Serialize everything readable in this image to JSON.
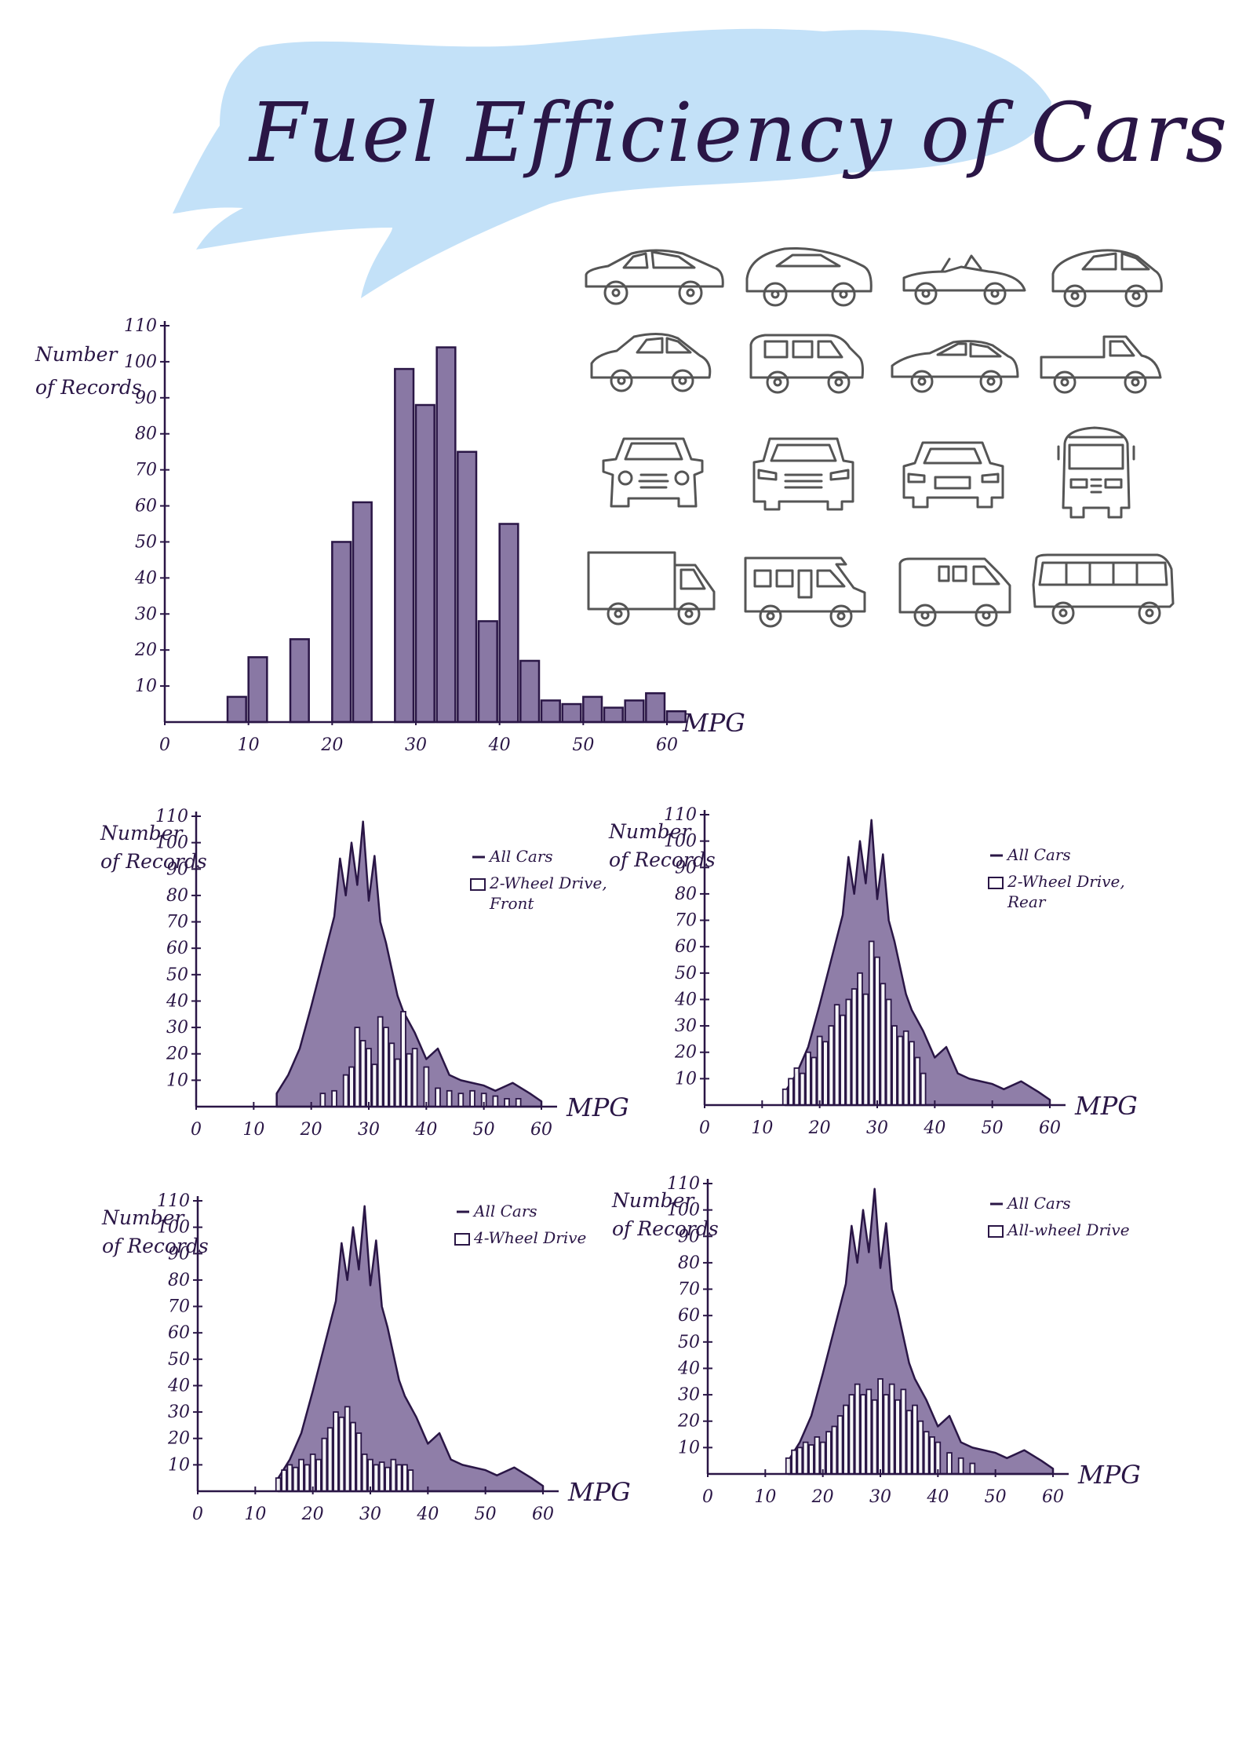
{
  "page": {
    "title": "Fuel Efficiency of Cars",
    "colors": {
      "ink": "#2a1646",
      "fill": "#6f5a90",
      "wash": "#b9dcf7",
      "icon_stroke": "#555555"
    }
  },
  "vehicle_icons": [
    "sedan-icon",
    "hatchback-icon",
    "convertible-icon",
    "compact-car-icon",
    "small-car-icon",
    "wagon-icon",
    "coupe-icon",
    "pickup-truck-icon",
    "car-front-icon",
    "suv-front-icon",
    "sedan-front-icon",
    "bus-front-icon",
    "box-truck-icon",
    "rv-icon",
    "van-icon",
    "bus-icon"
  ],
  "chart_data": [
    {
      "type": "bar",
      "id": "all",
      "xlabel": "MPG",
      "ylabel": [
        "Number",
        "of Records"
      ],
      "xlim": [
        0,
        60
      ],
      "ylim": [
        0,
        110
      ],
      "x_ticks": [
        0,
        10,
        20,
        30,
        40,
        50,
        60
      ],
      "y_ticks": [
        10,
        20,
        30,
        40,
        50,
        60,
        70,
        80,
        90,
        100,
        110
      ],
      "bin_width": 2.5,
      "bins_start": [
        7.5,
        10,
        15,
        20,
        22.5,
        27.5,
        30,
        32.5,
        35,
        37.5,
        40,
        42.5,
        45,
        47.5,
        50,
        52.5,
        55,
        57.5,
        60
      ],
      "values": [
        7,
        18,
        23,
        50,
        61,
        98,
        88,
        104,
        75,
        28,
        55,
        17,
        6,
        5,
        7,
        4,
        6,
        8,
        3
      ]
    },
    {
      "type": "area",
      "id": "front",
      "xlabel": "MPG",
      "ylabel": [
        "Number",
        "of Records"
      ],
      "xlim": [
        0,
        60
      ],
      "ylim": [
        0,
        110
      ],
      "x_ticks": [
        0,
        10,
        20,
        30,
        40,
        50,
        60
      ],
      "y_ticks": [
        10,
        20,
        30,
        40,
        50,
        60,
        70,
        80,
        90,
        100,
        110
      ],
      "legend": [
        "All Cars",
        "2-Wheel Drive, Front"
      ],
      "all_cars_x": [
        14,
        16,
        18,
        20,
        22,
        24,
        25,
        26,
        27,
        28,
        29,
        30,
        31,
        32,
        33,
        34,
        35,
        36,
        38,
        40,
        42,
        44,
        46,
        48,
        50,
        52,
        55,
        58,
        60
      ],
      "all_cars_y": [
        5,
        12,
        22,
        38,
        55,
        72,
        94,
        80,
        100,
        84,
        108,
        78,
        95,
        70,
        62,
        52,
        42,
        36,
        28,
        18,
        22,
        12,
        10,
        9,
        8,
        6,
        9,
        5,
        2
      ],
      "bars_x": [
        22,
        24,
        26,
        27,
        28,
        29,
        30,
        31,
        32,
        33,
        34,
        35,
        36,
        37,
        38,
        40,
        42,
        44,
        46,
        48,
        50,
        52,
        54,
        56
      ],
      "bars_y": [
        5,
        6,
        12,
        15,
        30,
        25,
        22,
        16,
        34,
        30,
        24,
        18,
        36,
        20,
        22,
        15,
        7,
        6,
        5,
        6,
        5,
        4,
        3,
        3
      ]
    },
    {
      "type": "area",
      "id": "rear",
      "xlabel": "MPG",
      "ylabel": [
        "Number",
        "of Records"
      ],
      "xlim": [
        0,
        60
      ],
      "ylim": [
        0,
        110
      ],
      "x_ticks": [
        0,
        10,
        20,
        30,
        40,
        50,
        60
      ],
      "y_ticks": [
        10,
        20,
        30,
        40,
        50,
        60,
        70,
        80,
        90,
        100,
        110
      ],
      "legend": [
        "All Cars",
        "2-Wheel Drive, Rear"
      ],
      "all_cars_x": [
        14,
        16,
        18,
        20,
        22,
        24,
        25,
        26,
        27,
        28,
        29,
        30,
        31,
        32,
        33,
        34,
        35,
        36,
        38,
        40,
        42,
        44,
        46,
        48,
        50,
        52,
        55,
        58,
        60
      ],
      "all_cars_y": [
        5,
        12,
        22,
        38,
        55,
        72,
        94,
        80,
        100,
        84,
        108,
        78,
        95,
        70,
        62,
        52,
        42,
        36,
        28,
        18,
        22,
        12,
        10,
        9,
        8,
        6,
        9,
        5,
        2
      ],
      "bars_x": [
        14,
        15,
        16,
        17,
        18,
        19,
        20,
        21,
        22,
        23,
        24,
        25,
        26,
        27,
        28,
        29,
        30,
        31,
        32,
        33,
        34,
        35,
        36,
        37,
        38
      ],
      "bars_y": [
        6,
        10,
        14,
        12,
        20,
        18,
        26,
        24,
        30,
        38,
        34,
        40,
        44,
        50,
        42,
        62,
        56,
        46,
        40,
        30,
        26,
        28,
        24,
        18,
        12
      ]
    },
    {
      "type": "area",
      "id": "4wd",
      "xlabel": "MPG",
      "ylabel": [
        "Number",
        "of Records"
      ],
      "xlim": [
        0,
        60
      ],
      "ylim": [
        0,
        110
      ],
      "x_ticks": [
        0,
        10,
        20,
        30,
        40,
        50,
        60
      ],
      "y_ticks": [
        10,
        20,
        30,
        40,
        50,
        60,
        70,
        80,
        90,
        100,
        110
      ],
      "legend": [
        "All Cars",
        "4-Wheel Drive"
      ],
      "all_cars_x": [
        14,
        16,
        18,
        20,
        22,
        24,
        25,
        26,
        27,
        28,
        29,
        30,
        31,
        32,
        33,
        34,
        35,
        36,
        38,
        40,
        42,
        44,
        46,
        48,
        50,
        52,
        55,
        58,
        60
      ],
      "all_cars_y": [
        5,
        12,
        22,
        38,
        55,
        72,
        94,
        80,
        100,
        84,
        108,
        78,
        95,
        70,
        62,
        52,
        42,
        36,
        28,
        18,
        22,
        12,
        10,
        9,
        8,
        6,
        9,
        5,
        2
      ],
      "bars_x": [
        14,
        15,
        16,
        17,
        18,
        19,
        20,
        21,
        22,
        23,
        24,
        25,
        26,
        27,
        28,
        29,
        30,
        31,
        32,
        33,
        34,
        35,
        36,
        37
      ],
      "bars_y": [
        5,
        8,
        10,
        9,
        12,
        10,
        14,
        12,
        20,
        24,
        30,
        28,
        32,
        26,
        22,
        14,
        12,
        10,
        11,
        9,
        12,
        10,
        10,
        8
      ]
    },
    {
      "type": "area",
      "id": "awd",
      "xlabel": "MPG",
      "ylabel": [
        "Number",
        "of Records"
      ],
      "xlim": [
        0,
        60
      ],
      "ylim": [
        0,
        110
      ],
      "x_ticks": [
        0,
        10,
        20,
        30,
        40,
        50,
        60
      ],
      "y_ticks": [
        10,
        20,
        30,
        40,
        50,
        60,
        70,
        80,
        90,
        100,
        110
      ],
      "legend": [
        "All Cars",
        "All-wheel Drive"
      ],
      "all_cars_x": [
        14,
        16,
        18,
        20,
        22,
        24,
        25,
        26,
        27,
        28,
        29,
        30,
        31,
        32,
        33,
        34,
        35,
        36,
        38,
        40,
        42,
        44,
        46,
        48,
        50,
        52,
        55,
        58,
        60
      ],
      "all_cars_y": [
        5,
        12,
        22,
        38,
        55,
        72,
        94,
        80,
        100,
        84,
        108,
        78,
        95,
        70,
        62,
        52,
        42,
        36,
        28,
        18,
        22,
        12,
        10,
        9,
        8,
        6,
        9,
        5,
        2
      ],
      "bars_x": [
        14,
        15,
        16,
        17,
        18,
        19,
        20,
        21,
        22,
        23,
        24,
        25,
        26,
        27,
        28,
        29,
        30,
        31,
        32,
        33,
        34,
        35,
        36,
        37,
        38,
        39,
        40,
        42,
        44,
        46
      ],
      "bars_y": [
        6,
        9,
        10,
        12,
        11,
        14,
        12,
        16,
        18,
        22,
        26,
        30,
        34,
        30,
        32,
        28,
        36,
        30,
        34,
        28,
        32,
        24,
        26,
        20,
        16,
        14,
        12,
        8,
        6,
        4
      ]
    }
  ]
}
